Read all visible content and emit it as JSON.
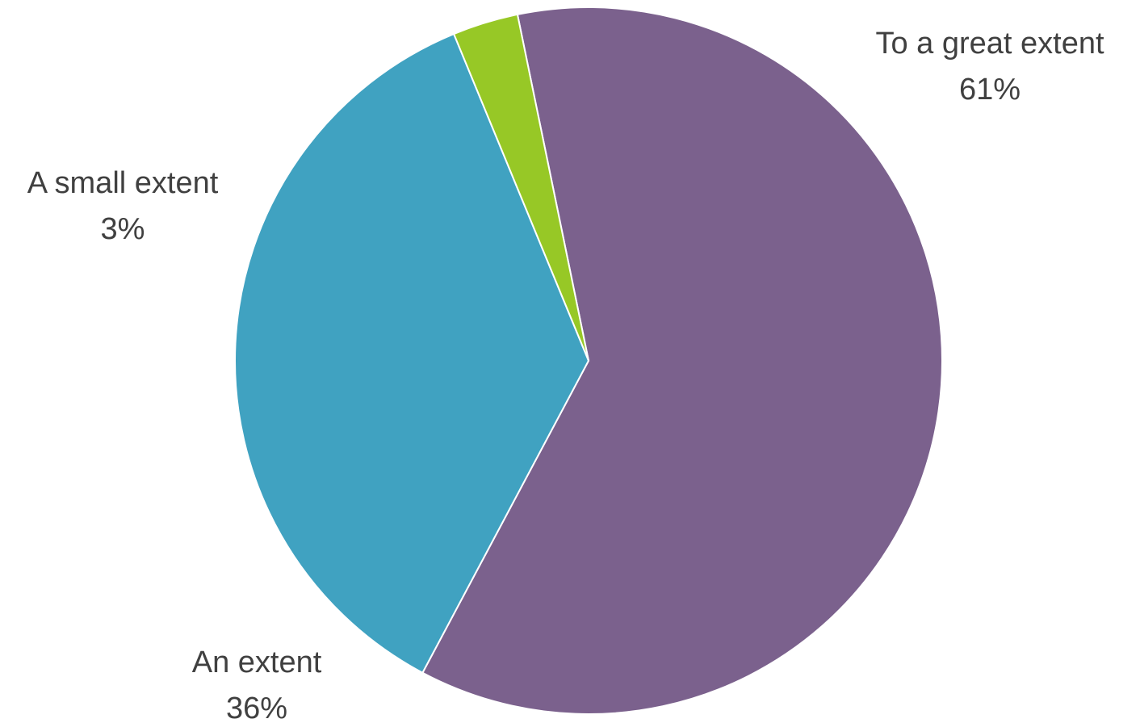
{
  "chart_data": {
    "type": "pie",
    "title": "",
    "slices": [
      {
        "label": "To a great extent",
        "value": 61,
        "value_label": "61%",
        "color": "#7B618D"
      },
      {
        "label": "An extent",
        "value": 36,
        "value_label": "36%",
        "color": "#40A2C1"
      },
      {
        "label": "A small extent",
        "value": 3,
        "value_label": "3%",
        "color": "#97C826"
      }
    ],
    "legend": "none",
    "data_labels": "outside"
  }
}
